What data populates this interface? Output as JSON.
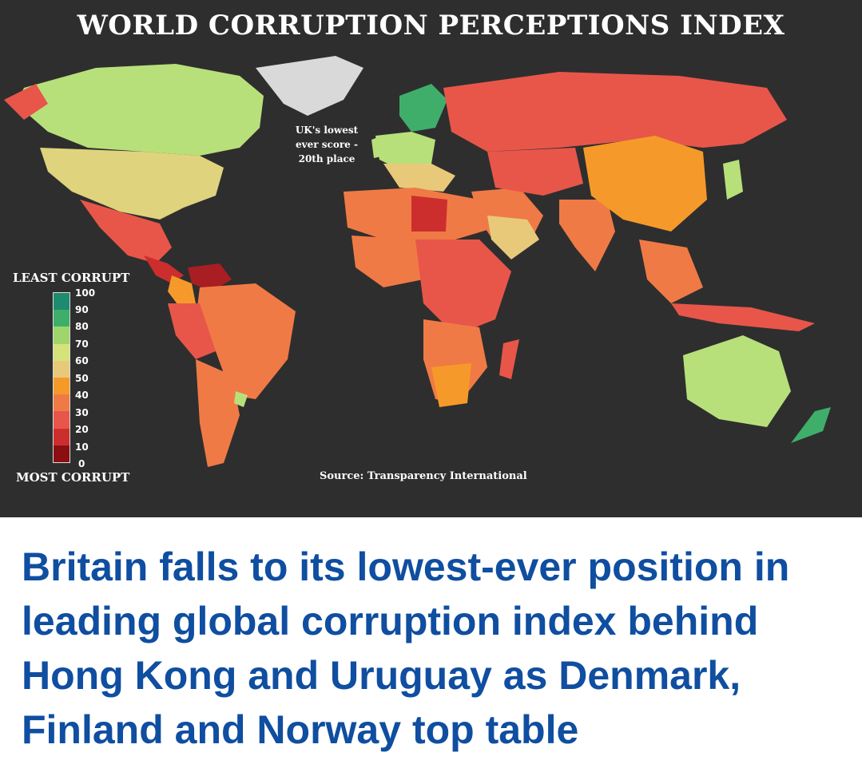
{
  "figure": {
    "title": "WORLD CORRUPTION PERCEPTIONS INDEX",
    "legend": {
      "top_label": "LEAST CORRUPT",
      "bottom_label": "MOST CORRUPT",
      "ticks": [
        "100",
        "90",
        "80",
        "70",
        "60",
        "50",
        "40",
        "30",
        "20",
        "10",
        "0"
      ],
      "colors": [
        "#1e8a6e",
        "#3fae6a",
        "#9fd66b",
        "#d6e27a",
        "#e8c97a",
        "#f59a2a",
        "#f07a45",
        "#e8564a",
        "#cc2e2e",
        "#8a0f12"
      ]
    },
    "annotation": [
      "UK's lowest",
      "ever score -",
      "20th place"
    ],
    "source": "Source: Transparency International"
  },
  "headline": "Britain falls to its lowest-ever position in leading global corruption index behind Hong Kong and Uruguay as Denmark, Finland and Norway top table"
}
